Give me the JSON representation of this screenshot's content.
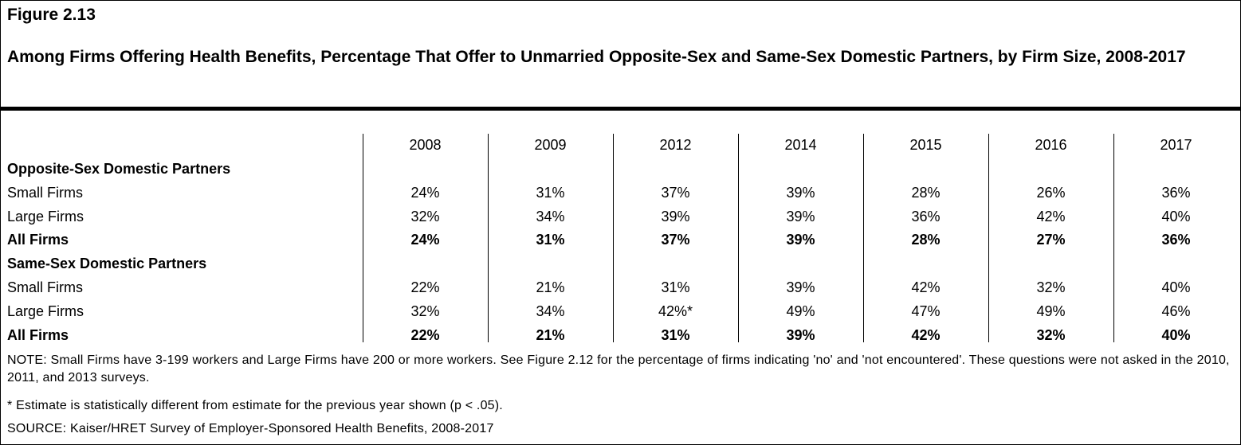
{
  "figure_label": "Figure 2.13",
  "title": "Among Firms Offering Health Benefits, Percentage That Offer to Unmarried Opposite-Sex and Same-Sex Domestic Partners, by Firm Size, 2008-2017",
  "chart_data": {
    "type": "table",
    "columns": [
      "2008",
      "2009",
      "2012",
      "2014",
      "2015",
      "2016",
      "2017"
    ],
    "groups": [
      {
        "name": "Opposite-Sex Domestic Partners",
        "rows": [
          {
            "label": "Small Firms",
            "bold": false,
            "values": [
              "24%",
              "31%",
              "37%",
              "39%",
              "28%",
              "26%",
              "36%"
            ]
          },
          {
            "label": "Large Firms",
            "bold": false,
            "values": [
              "32%",
              "34%",
              "39%",
              "39%",
              "36%",
              "42%",
              "40%"
            ]
          },
          {
            "label": "All Firms",
            "bold": true,
            "values": [
              "24%",
              "31%",
              "37%",
              "39%",
              "28%",
              "27%",
              "36%"
            ]
          }
        ]
      },
      {
        "name": "Same-Sex Domestic Partners",
        "rows": [
          {
            "label": "Small Firms",
            "bold": false,
            "values": [
              "22%",
              "21%",
              "31%",
              "39%",
              "42%",
              "32%",
              "40%"
            ]
          },
          {
            "label": "Large Firms",
            "bold": false,
            "values": [
              "32%",
              "34%",
              "42%*",
              "49%",
              "47%",
              "49%",
              "46%"
            ]
          },
          {
            "label": "All Firms",
            "bold": true,
            "values": [
              "22%",
              "21%",
              "31%",
              "39%",
              "42%",
              "32%",
              "40%"
            ]
          }
        ]
      }
    ]
  },
  "note": "NOTE: Small Firms have 3-199 workers and Large Firms have 200 or more workers. See Figure 2.12 for the percentage of firms indicating 'no' and 'not encountered'. These questions were not asked in the 2010, 2011, and 2013 surveys.",
  "footnote": "* Estimate is statistically different from estimate for the previous year shown (p < .05).",
  "source": "SOURCE: Kaiser/HRET Survey of Employer-Sponsored Health Benefits, 2008-2017"
}
